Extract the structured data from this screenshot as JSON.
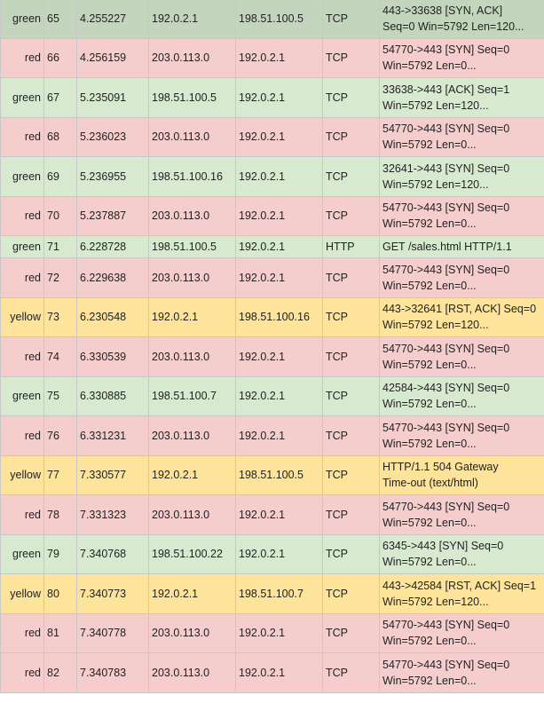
{
  "packets": [
    {
      "color": "green",
      "no": "65",
      "time": "4.255227",
      "src": "192.0.2.1",
      "dst": "198.51.100.5",
      "proto": "TCP",
      "info": [
        "443->33638 [SYN, ACK]",
        "Seq=0 Win=5792 Len=120..."
      ]
    },
    {
      "color": "red",
      "no": "66",
      "time": "4.256159",
      "src": "203.0.113.0",
      "dst": "192.0.2.1",
      "proto": "TCP",
      "info": [
        "54770->443 [SYN] Seq=0",
        "Win=5792 Len=0..."
      ]
    },
    {
      "color": "green",
      "no": "67",
      "time": "5.235091",
      "src": "198.51.100.5",
      "dst": "192.0.2.1",
      "proto": "TCP",
      "info": [
        "33638->443 [ACK] Seq=1",
        "Win=5792 Len=120..."
      ]
    },
    {
      "color": "red",
      "no": "68",
      "time": "5.236023",
      "src": "203.0.113.0",
      "dst": "192.0.2.1",
      "proto": "TCP",
      "info": [
        "54770->443 [SYN] Seq=0",
        "Win=5792 Len=0..."
      ]
    },
    {
      "color": "green",
      "no": "69",
      "time": "5.236955",
      "src": "198.51.100.16",
      "dst": "192.0.2.1",
      "proto": "TCP",
      "info": [
        "32641->443 [SYN] Seq=0",
        "Win=5792 Len=120..."
      ]
    },
    {
      "color": "red",
      "no": "70",
      "time": "5.237887",
      "src": "203.0.113.0",
      "dst": "192.0.2.1",
      "proto": "TCP",
      "info": [
        "54770->443 [SYN] Seq=0",
        "Win=5792 Len=0..."
      ]
    },
    {
      "color": "green",
      "no": "71",
      "time": "6.228728",
      "src": "198.51.100.5",
      "dst": "192.0.2.1",
      "proto": "HTTP",
      "info": [
        "GET /sales.html HTTP/1.1"
      ]
    },
    {
      "color": "red",
      "no": "72",
      "time": "6.229638",
      "src": "203.0.113.0",
      "dst": "192.0.2.1",
      "proto": "TCP",
      "info": [
        "54770->443 [SYN] Seq=0",
        "Win=5792 Len=0..."
      ]
    },
    {
      "color": "yellow",
      "no": "73",
      "time": "6.230548",
      "src": "192.0.2.1",
      "dst": "198.51.100.16",
      "proto": "TCP",
      "info": [
        "443->32641 [RST, ACK] Seq=0",
        "Win=5792 Len=120..."
      ]
    },
    {
      "color": "red",
      "no": "74",
      "time": "6.330539",
      "src": "203.0.113.0",
      "dst": "192.0.2.1",
      "proto": "TCP",
      "info": [
        "54770->443 [SYN] Seq=0",
        "Win=5792 Len=0..."
      ]
    },
    {
      "color": "green",
      "no": "75",
      "time": "6.330885",
      "src": "198.51.100.7",
      "dst": "192.0.2.1",
      "proto": "TCP",
      "info": [
        "42584->443 [SYN] Seq=0",
        "Win=5792 Len=0..."
      ]
    },
    {
      "color": "red",
      "no": "76",
      "time": "6.331231",
      "src": "203.0.113.0",
      "dst": "192.0.2.1",
      "proto": "TCP",
      "info": [
        "54770->443 [SYN] Seq=0",
        "Win=5792 Len=0..."
      ]
    },
    {
      "color": "yellow",
      "no": "77",
      "time": "7.330577",
      "src": "192.0.2.1",
      "dst": "198.51.100.5",
      "proto": "TCP",
      "info": [
        "HTTP/1.1 504 Gateway",
        "Time-out (text/html)"
      ]
    },
    {
      "color": "red",
      "no": "78",
      "time": "7.331323",
      "src": "203.0.113.0",
      "dst": "192.0.2.1",
      "proto": "TCP",
      "info": [
        "54770->443 [SYN] Seq=0",
        "Win=5792 Len=0..."
      ]
    },
    {
      "color": "green",
      "no": "79",
      "time": "7.340768",
      "src": "198.51.100.22",
      "dst": "192.0.2.1",
      "proto": "TCP",
      "info": [
        "6345->443 [SYN] Seq=0",
        "Win=5792 Len=0..."
      ]
    },
    {
      "color": "yellow",
      "no": "80",
      "time": "7.340773",
      "src": "192.0.2.1",
      "dst": "198.51.100.7",
      "proto": "TCP",
      "info": [
        "443->42584 [RST, ACK] Seq=1",
        "Win=5792 Len=120..."
      ]
    },
    {
      "color": "red",
      "no": "81",
      "time": "7.340778",
      "src": "203.0.113.0",
      "dst": "192.0.2.1",
      "proto": "TCP",
      "info": [
        "54770->443 [SYN] Seq=0",
        "Win=5792 Len=0..."
      ]
    },
    {
      "color": "red",
      "no": "82",
      "time": "7.340783",
      "src": "203.0.113.0",
      "dst": "192.0.2.1",
      "proto": "TCP",
      "info": [
        "54770->443 [SYN] Seq=0",
        "Win=5792 Len=0..."
      ]
    }
  ],
  "row_colors": {
    "green": "#d7ead0",
    "red": "#f5cdcd",
    "yellow": "#fde49a"
  }
}
